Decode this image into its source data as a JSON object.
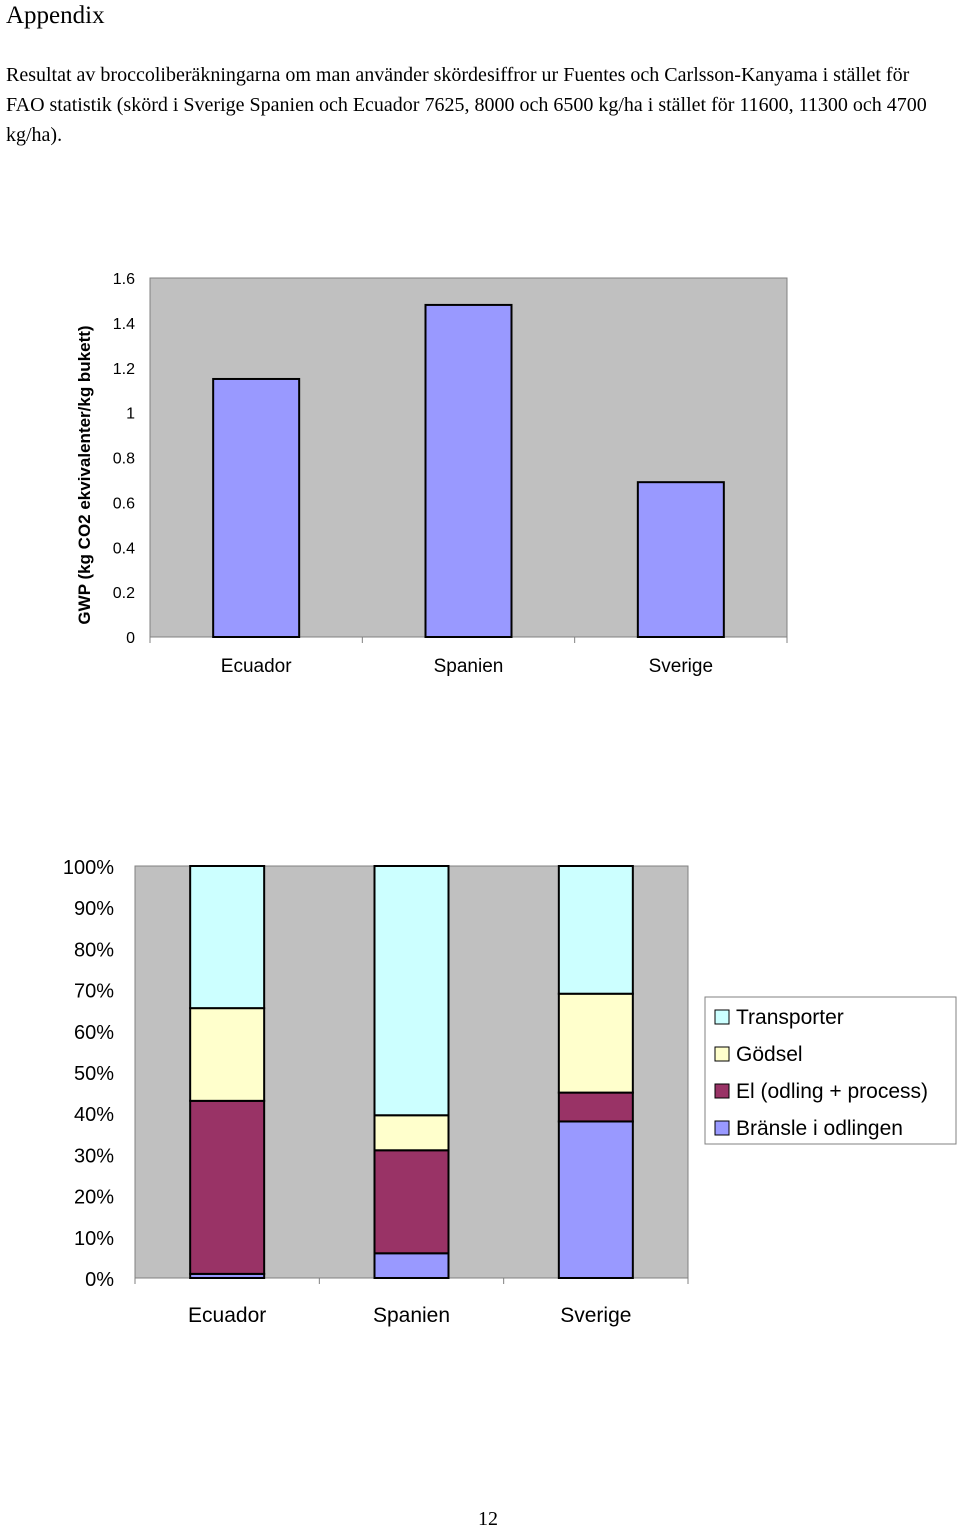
{
  "page": {
    "heading": "Appendix",
    "intro": "Resultat av broccoliberäkningarna om man använder skördesiffror ur Fuentes och Carlsson-Kanyama i stället för FAO statistik (skörd i Sverige Spanien och Ecuador 7625, 8000 och 6500 kg/ha i stället för 11600, 11300 och 4700 kg/ha).",
    "page_number": "12"
  },
  "colors": {
    "plot_background": "#c0c0c0",
    "bar_fill": "#9999ff",
    "transporter": "#ccffff",
    "godsel": "#ffffcc",
    "el": "#993366",
    "bransle": "#9999ff"
  },
  "chart_data": [
    {
      "type": "bar",
      "title": "",
      "xlabel": "",
      "ylabel": "GWP (kg CO2 ekvivalenter/kg bukett)",
      "categories": [
        "Ecuador",
        "Spanien",
        "Sverige"
      ],
      "values": [
        1.15,
        1.48,
        0.69
      ],
      "ylim": [
        0,
        1.6
      ],
      "yticks": [
        0,
        0.2,
        0.4,
        0.6,
        0.8,
        1,
        1.2,
        1.4,
        1.6
      ],
      "ytick_labels": [
        "0",
        "0.2",
        "0.4",
        "0.6",
        "0.8",
        "1",
        "1.2",
        "1.4",
        "1.6"
      ],
      "grid": false,
      "legend": "none"
    },
    {
      "type": "bar",
      "stacked": "percent",
      "title": "",
      "xlabel": "",
      "ylabel": "",
      "categories": [
        "Ecuador",
        "Spanien",
        "Sverige"
      ],
      "ylim": [
        0,
        100
      ],
      "yticks": [
        0,
        10,
        20,
        30,
        40,
        50,
        60,
        70,
        80,
        90,
        100
      ],
      "ytick_labels": [
        "0%",
        "10%",
        "20%",
        "30%",
        "40%",
        "50%",
        "60%",
        "70%",
        "80%",
        "90%",
        "100%"
      ],
      "legend": "right",
      "legend_order": [
        "Transporter",
        "Gödsel",
        "El (odling + process)",
        "Bränsle i odlingen"
      ],
      "series": [
        {
          "name": "Bränsle i odlingen",
          "color_key": "bransle",
          "values": [
            1,
            6,
            38
          ]
        },
        {
          "name": "El (odling + process)",
          "color_key": "el",
          "values": [
            42,
            25,
            7
          ]
        },
        {
          "name": "Gödsel",
          "color_key": "godsel",
          "values": [
            22.5,
            8.5,
            24
          ]
        },
        {
          "name": "Transporter",
          "color_key": "transporter",
          "values": [
            34.5,
            60.5,
            31
          ]
        }
      ]
    }
  ]
}
